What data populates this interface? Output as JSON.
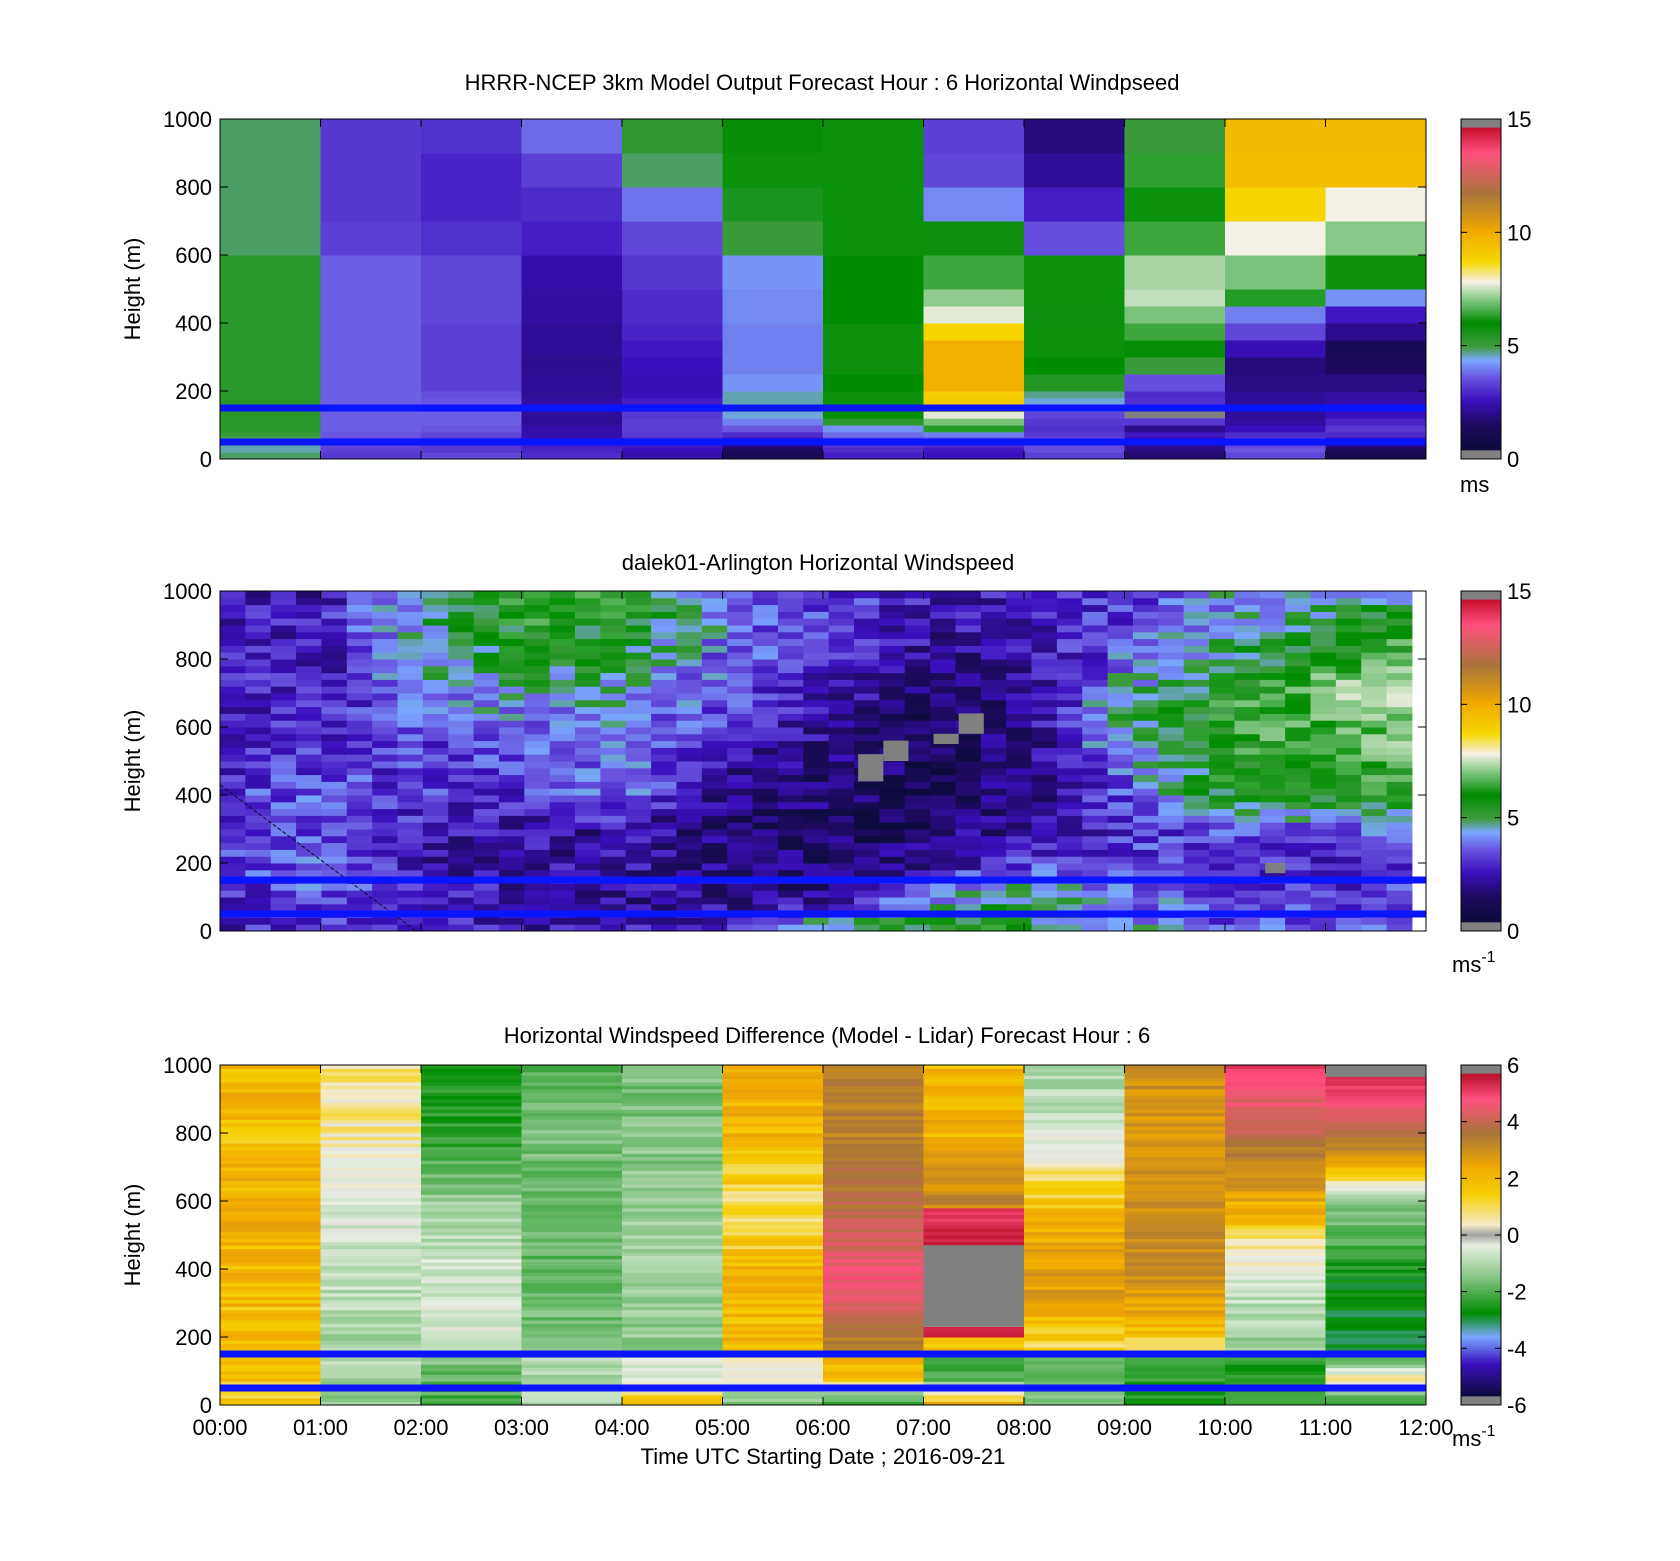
{
  "figure": {
    "xlabel": "Time UTC  Starting Date ; 2016-09-21",
    "x_ticks": [
      "00:00",
      "01:00",
      "02:00",
      "03:00",
      "04:00",
      "05:00",
      "06:00",
      "07:00",
      "08:00",
      "09:00",
      "10:00",
      "11:00",
      "12:00"
    ]
  },
  "chart_data": [
    {
      "type": "heatmap",
      "title": "HRRR-NCEP 3km Model Output   Forecast Hour : 6 Horizontal Windpseed",
      "ylabel": "Height (m)",
      "ylim": [
        0,
        1000
      ],
      "y_ticks": [
        "0",
        "200",
        "400",
        "600",
        "800",
        "1000"
      ],
      "xlim": [
        0,
        12
      ],
      "colorbar": {
        "ticks": [
          "0",
          "5",
          "10",
          "15"
        ],
        "range": [
          0,
          15
        ],
        "unit": "ms"
      },
      "reference_lines_m": [
        150,
        50
      ],
      "line_color": "#0a14ff",
      "layer_tops_m": [
        20,
        35,
        50,
        65,
        80,
        100,
        120,
        140,
        160,
        180,
        200,
        250,
        300,
        350,
        400,
        450,
        500,
        550,
        600,
        700,
        800,
        900,
        1000
      ],
      "speeds": [
        [
          4.2,
          2.6,
          2.8,
          2.4,
          1.8,
          0.8,
          2.2,
          2.0,
          2.7,
          1.2,
          2.8,
          0.6
        ],
        [
          4.0,
          2.7,
          2.6,
          2.3,
          2.0,
          1.0,
          2.4,
          2.1,
          2.9,
          1.4,
          3.0,
          0.9
        ],
        [
          4.0,
          2.8,
          2.6,
          2.2,
          2.2,
          1.4,
          2.6,
          2.4,
          2.9,
          1.5,
          2.8,
          1.4
        ],
        [
          4.2,
          2.9,
          2.6,
          1.9,
          2.4,
          2.0,
          2.8,
          2.9,
          2.8,
          1.8,
          2.6,
          1.9
        ],
        [
          4.4,
          3.0,
          2.8,
          1.8,
          2.6,
          2.4,
          3.2,
          3.4,
          2.6,
          2.1,
          2.4,
          2.4
        ],
        [
          4.6,
          3.1,
          3.0,
          1.8,
          2.7,
          3.0,
          3.6,
          5.5,
          2.5,
          1.5,
          2.0,
          2.6
        ],
        [
          4.6,
          3.1,
          3.1,
          1.6,
          2.7,
          3.4,
          4.6,
          6.2,
          2.6,
          2.6,
          1.7,
          2.3
        ],
        [
          4.6,
          3.1,
          3.1,
          1.6,
          2.6,
          3.9,
          5.1,
          7.4,
          2.8,
          2.9,
          1.6,
          2.0
        ],
        [
          4.6,
          3.1,
          3.0,
          1.7,
          2.4,
          4.1,
          5.3,
          8.6,
          3.4,
          2.7,
          1.6,
          1.9
        ],
        [
          4.6,
          3.1,
          3.0,
          1.7,
          2.2,
          4.0,
          5.3,
          8.9,
          3.9,
          2.5,
          1.6,
          1.8
        ],
        [
          4.6,
          3.1,
          2.9,
          1.6,
          2.0,
          4.0,
          5.3,
          8.8,
          4.1,
          2.4,
          1.6,
          1.7
        ],
        [
          4.6,
          3.1,
          2.7,
          1.6,
          1.9,
          3.6,
          5.2,
          9.6,
          4.7,
          2.9,
          1.4,
          1.4
        ],
        [
          4.6,
          3.1,
          2.7,
          1.5,
          2.0,
          3.4,
          5.0,
          9.6,
          5.2,
          4.4,
          1.3,
          1.0
        ],
        [
          4.6,
          3.1,
          2.7,
          1.6,
          2.1,
          3.4,
          5.3,
          9.6,
          5.3,
          5.1,
          1.9,
          0.8
        ],
        [
          4.6,
          3.1,
          2.7,
          1.6,
          2.3,
          3.4,
          5.3,
          8.6,
          5.3,
          5.7,
          2.8,
          1.5
        ],
        [
          4.6,
          3.1,
          2.8,
          1.7,
          2.4,
          3.5,
          5.2,
          7.4,
          5.0,
          6.2,
          3.4,
          2.1
        ],
        [
          4.6,
          3.1,
          2.8,
          1.7,
          2.4,
          3.5,
          5.2,
          6.4,
          5.3,
          7.0,
          5.5,
          3.6
        ],
        [
          4.6,
          3.1,
          2.8,
          1.8,
          2.6,
          3.6,
          5.2,
          5.7,
          5.3,
          6.7,
          6.2,
          5.3
        ],
        [
          4.6,
          3.1,
          2.8,
          1.8,
          2.6,
          3.6,
          5.2,
          5.7,
          5.3,
          6.7,
          6.2,
          5.3
        ],
        [
          4.2,
          2.7,
          2.5,
          2.2,
          2.8,
          4.4,
          5.3,
          5.0,
          2.9,
          5.7,
          7.6,
          6.3
        ],
        [
          4.2,
          2.6,
          2.3,
          2.4,
          3.3,
          4.8,
          5.3,
          3.5,
          2.2,
          5.3,
          8.6,
          7.6
        ],
        [
          4.2,
          2.6,
          2.3,
          2.7,
          4.2,
          5.3,
          5.3,
          2.8,
          1.6,
          5.6,
          9.2,
          9.2
        ],
        [
          4.2,
          2.6,
          2.5,
          3.2,
          4.5,
          5.1,
          5.3,
          2.7,
          1.3,
          4.4,
          9.3,
          9.3
        ]
      ]
    },
    {
      "type": "heatmap",
      "title": "dalek01-Arlington  Horizontal Windspeed",
      "ylabel": "Height (m)",
      "ylim": [
        0,
        1000
      ],
      "y_ticks": [
        "0",
        "200",
        "400",
        "600",
        "800",
        "1000"
      ],
      "xlim": [
        0,
        12
      ],
      "data_xlim": [
        0,
        11.86
      ],
      "columns": 47,
      "colorbar": {
        "ticks": [
          "0",
          "5",
          "10",
          "15"
        ],
        "range": [
          0,
          15
        ],
        "unit": "ms",
        "unit_exp": "-1"
      },
      "reference_lines_m": [
        150,
        50
      ],
      "line_color": "#0a14ff",
      "time_keys_h": [
        0,
        1,
        2,
        3,
        4,
        5,
        6,
        7,
        8,
        9,
        10,
        11,
        11.86
      ],
      "height_keys_m": [
        0,
        100,
        200,
        300,
        400,
        500,
        600,
        700,
        800,
        900,
        1000
      ],
      "speed_keys": [
        [
          2.2,
          2.1,
          2.6,
          2.4,
          2.6,
          2.2,
          2.1,
          2.3,
          2.4,
          2.2,
          2.0
        ],
        [
          2.6,
          3.1,
          3.2,
          2.9,
          3.0,
          2.6,
          2.3,
          2.1,
          2.0,
          2.0,
          2.0
        ],
        [
          2.6,
          2.3,
          1.9,
          2.1,
          2.6,
          2.5,
          2.8,
          3.5,
          3.9,
          4.0,
          4.1
        ],
        [
          1.7,
          1.8,
          1.8,
          1.9,
          2.4,
          2.9,
          3.3,
          3.9,
          4.6,
          5.1,
          5.3
        ],
        [
          2.0,
          1.7,
          1.7,
          1.8,
          3.3,
          3.4,
          3.5,
          3.9,
          4.4,
          5.0,
          5.3
        ],
        [
          2.3,
          1.6,
          1.4,
          1.2,
          1.4,
          1.9,
          2.4,
          2.8,
          3.2,
          3.3,
          3.4
        ],
        [
          4.4,
          1.4,
          1.0,
          0.8,
          1.1,
          1.3,
          1.7,
          2.1,
          2.4,
          2.6,
          2.8
        ],
        [
          5.2,
          3.6,
          1.6,
          0.9,
          0.6,
          0.7,
          0.9,
          1.3,
          1.7,
          2.0,
          2.2
        ],
        [
          4.8,
          4.2,
          2.6,
          1.8,
          1.3,
          1.2,
          1.3,
          1.4,
          1.6,
          1.9,
          2.0
        ],
        [
          3.6,
          3.4,
          2.8,
          2.4,
          2.9,
          3.4,
          4.4,
          4.0,
          3.2,
          2.7,
          2.6
        ],
        [
          3.0,
          2.8,
          2.4,
          3.0,
          4.9,
          5.2,
          5.2,
          5.1,
          4.3,
          3.8,
          3.5
        ],
        [
          3.0,
          2.6,
          2.3,
          3.0,
          5.2,
          5.5,
          5.9,
          6.4,
          5.4,
          4.6,
          4.0
        ],
        [
          3.3,
          2.7,
          2.5,
          3.4,
          5.0,
          5.6,
          6.6,
          7.2,
          6.0,
          4.8,
          3.8
        ]
      ],
      "missing_blocks": [
        {
          "t": [
            6.35,
            6.6
          ],
          "z": [
            440,
            520
          ]
        },
        {
          "t": [
            6.6,
            6.85
          ],
          "z": [
            500,
            560
          ]
        },
        {
          "t": [
            7.1,
            7.35
          ],
          "z": [
            550,
            580
          ]
        },
        {
          "t": [
            7.35,
            7.6
          ],
          "z": [
            580,
            640
          ]
        },
        {
          "t": [
            10.4,
            10.6
          ],
          "z": [
            170,
            200
          ]
        }
      ]
    },
    {
      "type": "heatmap",
      "title": "Horizontal Windspeed Difference (Model - Lidar) Forecast Hour : 6",
      "ylabel": "Height (m)",
      "ylim": [
        0,
        1000
      ],
      "y_ticks": [
        "0",
        "200",
        "400",
        "600",
        "800",
        "1000"
      ],
      "xlim": [
        0,
        12
      ],
      "colorbar": {
        "ticks": [
          "-6",
          "-4",
          "-2",
          "0",
          "2",
          "4",
          "6"
        ],
        "range": [
          -6,
          6
        ],
        "unit": "ms",
        "unit_exp": "-1"
      },
      "reference_lines_m": [
        150,
        50
      ],
      "line_color": "#0a14ff",
      "segments": [
        {
          "col": 0,
          "z": [
            0,
            160
          ],
          "d": [
            1.0,
            1.2,
            0.9,
            1.3
          ]
        },
        {
          "col": 0,
          "z": [
            160,
            1000
          ],
          "d": [
            1.2,
            1.3,
            1.5,
            1.2,
            1.4
          ]
        },
        {
          "col": 1,
          "z": [
            0,
            160
          ],
          "d": [
            -1.2,
            -1.0,
            -0.8
          ]
        },
        {
          "col": 1,
          "z": [
            160,
            1000
          ],
          "d": [
            -0.9,
            -0.6,
            -0.3,
            0.3,
            0.6
          ]
        },
        {
          "col": 2,
          "z": [
            0,
            160
          ],
          "d": [
            -2.0,
            -1.6,
            -1.3
          ]
        },
        {
          "col": 2,
          "z": [
            160,
            1000
          ],
          "d": [
            -0.3,
            -0.4,
            -1.0,
            -2.2,
            -2.3
          ]
        },
        {
          "col": 3,
          "z": [
            0,
            160
          ],
          "d": [
            -0.6,
            -0.8,
            -1.0
          ]
        },
        {
          "col": 3,
          "z": [
            160,
            1000
          ],
          "d": [
            -1.4,
            -1.6,
            -1.6,
            -1.4,
            -1.7
          ]
        },
        {
          "col": 4,
          "z": [
            0,
            160
          ],
          "d": [
            1.2,
            -0.2,
            -0.4
          ]
        },
        {
          "col": 4,
          "z": [
            160,
            1000
          ],
          "d": [
            -1.2,
            -1.0,
            -1.1,
            -1.3,
            -1.4
          ]
        },
        {
          "col": 5,
          "z": [
            0,
            160
          ],
          "d": [
            -1.6,
            0.0,
            0.7
          ]
        },
        {
          "col": 5,
          "z": [
            160,
            1000
          ],
          "d": [
            1.3,
            1.4,
            0.6,
            1.4,
            1.5
          ]
        },
        {
          "col": 6,
          "z": [
            0,
            160
          ],
          "d": [
            -2.6,
            1.2,
            1.8
          ]
        },
        {
          "col": 6,
          "z": [
            160,
            1000
          ],
          "d": [
            2.5,
            4.0,
            3.0,
            2.5,
            2.6
          ]
        },
        {
          "col": 7,
          "z": [
            0,
            160
          ],
          "d": [
            1.8,
            -2.0,
            -1.6
          ]
        },
        {
          "col": 7,
          "z": [
            160,
            200
          ],
          "d": [
            1.0,
            1.5
          ]
        },
        {
          "col": 7,
          "z": [
            200,
            230
          ],
          "d": [
            5.5,
            5.5
          ]
        },
        {
          "col": 7,
          "z": [
            470,
            580
          ],
          "d": [
            5.6,
            4.8
          ]
        },
        {
          "col": 7,
          "z": [
            580,
            1000
          ],
          "d": [
            2.4,
            1.5,
            1.3
          ]
        },
        {
          "col": 8,
          "z": [
            0,
            160
          ],
          "d": [
            -1.0,
            -2.0,
            -1.4
          ]
        },
        {
          "col": 8,
          "z": [
            160,
            1000
          ],
          "d": [
            0.8,
            2.0,
            1.2,
            -0.3,
            -1.0
          ]
        },
        {
          "col": 9,
          "z": [
            0,
            160
          ],
          "d": [
            -2.6,
            -2.0,
            -1.6
          ]
        },
        {
          "col": 9,
          "z": [
            160,
            1000
          ],
          "d": [
            0.6,
            2.3,
            2.2,
            2.0,
            2.2
          ]
        },
        {
          "col": 10,
          "z": [
            0,
            160
          ],
          "d": [
            -1.6,
            -2.2,
            -2.4
          ]
        },
        {
          "col": 10,
          "z": [
            160,
            1000
          ],
          "d": [
            -1.2,
            -0.4,
            1.5,
            3.0,
            4.8
          ]
        },
        {
          "col": 11,
          "z": [
            0,
            160
          ],
          "d": [
            -2.4,
            0.4,
            -2.4
          ]
        },
        {
          "col": 11,
          "z": [
            160,
            1000
          ],
          "d": [
            -3.0,
            -2.6,
            -1.2,
            3.0,
            5.6
          ]
        }
      ],
      "missing_blocks": [
        {
          "t": [
            7.0,
            8.0
          ],
          "z": [
            230,
            470
          ]
        },
        {
          "t": [
            11.0,
            12.0
          ],
          "z": [
            965,
            1000
          ]
        }
      ]
    }
  ]
}
